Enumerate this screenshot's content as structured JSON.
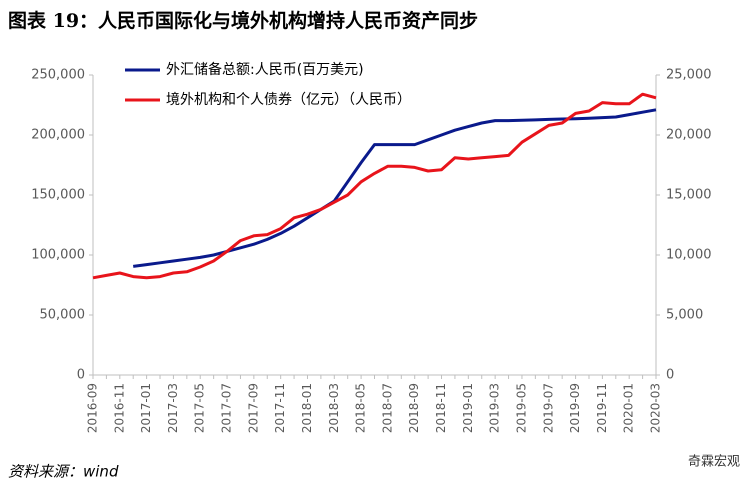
{
  "chart_data": {
    "type": "line",
    "title": "图表 19：人民币国际化与境外机构增持人民币资产同步",
    "source": "资料来源：wind",
    "watermark": "奇霖宏观",
    "categories": [
      "2016-09",
      null,
      "2016-11",
      null,
      "2017-01",
      null,
      "2017-03",
      null,
      "2017-05",
      null,
      "2017-07",
      null,
      "2017-09",
      null,
      "2017-11",
      null,
      "2018-01",
      null,
      "2018-03",
      null,
      "2018-05",
      null,
      "2018-07",
      null,
      "2018-09",
      null,
      "2018-11",
      null,
      "2019-01",
      null,
      "2019-03",
      null,
      "2019-05",
      null,
      "2019-07",
      null,
      "2019-09",
      null,
      "2019-11",
      null,
      "2020-01",
      null,
      "2020-03"
    ],
    "series": [
      {
        "name": "外汇储备总额:人民币(百万美元)",
        "color": "#0a1a8c",
        "axis": "y",
        "values": [
          null,
          null,
          null,
          90500,
          92000,
          93500,
          95000,
          96500,
          98000,
          100000,
          103000,
          106000,
          109000,
          113000,
          118000,
          124000,
          131000,
          138000,
          145000,
          161000,
          177000,
          192000,
          192000,
          192000,
          192000,
          196000,
          200000,
          204000,
          207000,
          210000,
          212000,
          212000,
          212300,
          212600,
          213000,
          213300,
          213600,
          214000,
          214500,
          215000,
          217000,
          219000,
          221000
        ]
      },
      {
        "name": "境外机构和个人债券（亿元）（人民币）",
        "color": "#e8141b",
        "axis": "y2",
        "values": [
          8100,
          8300,
          8500,
          8200,
          8100,
          8200,
          8500,
          8600,
          9000,
          9500,
          10300,
          11200,
          11600,
          11700,
          12200,
          13100,
          13400,
          13800,
          14400,
          15000,
          16100,
          16800,
          17400,
          17400,
          17300,
          17000,
          17100,
          18100,
          18000,
          18100,
          18200,
          18300,
          19400,
          20100,
          20800,
          21000,
          21800,
          22000,
          22700,
          22600,
          22600,
          23400,
          23100
        ]
      }
    ],
    "ylim": [
      0,
      250000
    ],
    "yticks": [
      0,
      {
        "value": 50000,
        "label": "50,000"
      },
      {
        "value": 100000,
        "label": "100,000"
      },
      {
        "value": 150000,
        "label": "150,000"
      },
      {
        "value": 200000,
        "label": "200,000"
      },
      {
        "value": 250000,
        "label": "250,000"
      }
    ],
    "y2lim": [
      0,
      25000
    ],
    "y2ticks": [
      0,
      {
        "value": 5000,
        "label": "5,000"
      },
      {
        "value": 10000,
        "label": "10,000"
      },
      {
        "value": 15000,
        "label": "15,000"
      },
      {
        "value": 20000,
        "label": "20,000"
      },
      {
        "value": 25000,
        "label": "25,000"
      }
    ],
    "legend": "upper left",
    "grid": false
  }
}
